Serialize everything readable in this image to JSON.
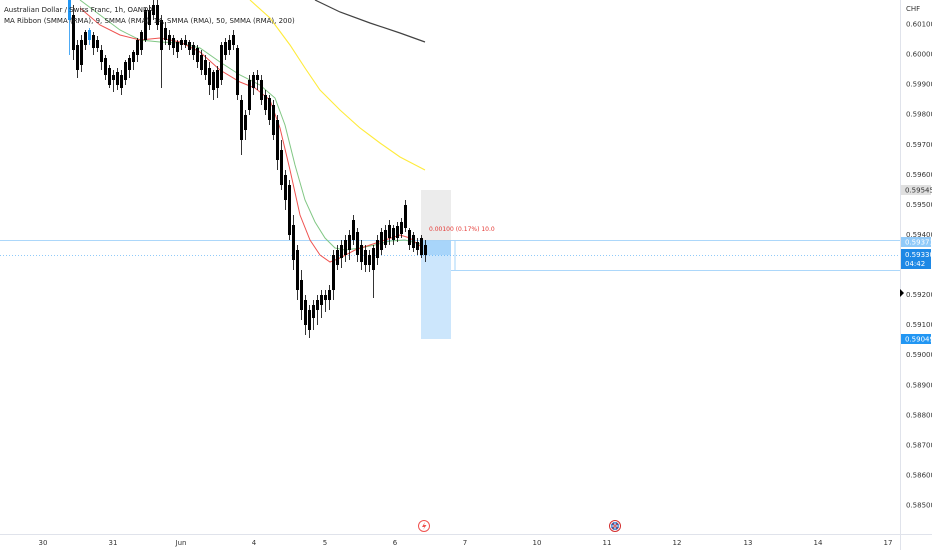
{
  "legend": {
    "symbol_line": "Australian Dollar / Swiss Franc, 1h, OANDA",
    "indicator_line": "MA Ribbon (SMMA (RMA), 9, SMMA (RMA), 14, SMMA (RMA), 50, SMMA (RMA), 200)"
  },
  "currency": "CHF",
  "price_ticks": [
    "0.60100",
    "0.60000",
    "0.59900",
    "0.59800",
    "0.59700",
    "0.59600",
    "0.59500",
    "0.59400",
    "0.59200",
    "0.59100",
    "0.59000",
    "0.58900",
    "0.58800",
    "0.58700",
    "0.58600",
    "0.58500"
  ],
  "price_labels": {
    "stop": "0.59545",
    "entry": "0.59371",
    "current": "0.59330",
    "countdown": "04:42",
    "target": "0.59049"
  },
  "position_annotation": "0.00100 (0.17%) 10.0",
  "time_ticks": [
    "30",
    "31",
    "Jun",
    "4",
    "5",
    "6",
    "7",
    "10",
    "11",
    "12",
    "13",
    "14",
    "17"
  ],
  "icons": [
    "lightning-icon",
    "flag-icon"
  ],
  "colors": {
    "up": "#2196f3",
    "down": "#000000",
    "ma9": "#ef5350",
    "ma14": "#81c784",
    "ma50": "#ffeb3b",
    "ma200": "#424242",
    "profit_zone": "#bbdefb",
    "loss_zone": "#e0e0e0",
    "entry_label": "#1e88e5"
  },
  "chart_data": {
    "type": "candlestick",
    "symbol": "AUDCHF",
    "timeframe": "1h",
    "ylim": [
      0.5845,
      0.6015
    ],
    "position": {
      "type": "short",
      "entry": 0.59371,
      "stop": 0.59545,
      "target": 0.59049
    },
    "current_price": 0.5933
  }
}
